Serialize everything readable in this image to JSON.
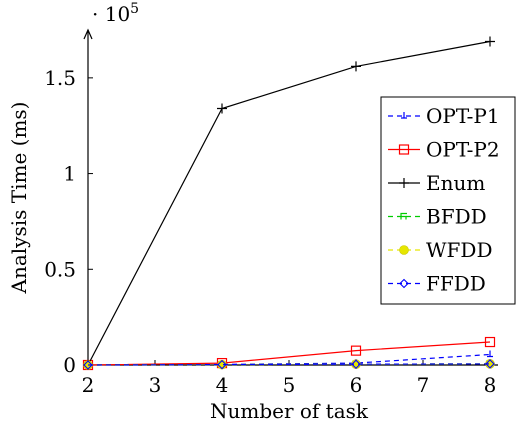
{
  "chart_data": {
    "type": "line",
    "xlabel": "Number of task",
    "ylabel": "Analysis Time (ms)",
    "y_multiplier_label": "· 10^5",
    "x": [
      2,
      4,
      6,
      8
    ],
    "xlim": [
      2,
      8
    ],
    "ylim": [
      0,
      1.75
    ],
    "x_ticks": [
      "2",
      "3",
      "4",
      "5",
      "6",
      "7",
      "8"
    ],
    "y_ticks": [
      "0",
      "0.5",
      "1",
      "1.5"
    ],
    "grid": false,
    "legend_position": "right",
    "series": [
      {
        "name": "OPT-P1",
        "color": "#0000ff",
        "dash": "5 4",
        "marker": "tri",
        "values": [
          0,
          0.003,
          0.01,
          0.055
        ]
      },
      {
        "name": "OPT-P2",
        "color": "#ff0000",
        "dash": "",
        "marker": "square",
        "values": [
          0,
          0.01,
          0.075,
          0.12
        ]
      },
      {
        "name": "Enum",
        "color": "#000000",
        "dash": "",
        "marker": "plus",
        "values": [
          0,
          1.34,
          1.56,
          1.69
        ]
      },
      {
        "name": "BFDD",
        "color": "#00cc00",
        "dash": "5 4",
        "marker": "bfdd",
        "values": [
          0,
          0.002,
          0.004,
          0.006
        ]
      },
      {
        "name": "WFDD",
        "color": "#e6e600",
        "dash": "5 4",
        "marker": "dot",
        "values": [
          0,
          0.002,
          0.004,
          0.006
        ]
      },
      {
        "name": "FFDD",
        "color": "#0000ff",
        "dash": "5 4",
        "marker": "diamond",
        "values": [
          0,
          0.002,
          0.004,
          0.006
        ]
      }
    ]
  }
}
